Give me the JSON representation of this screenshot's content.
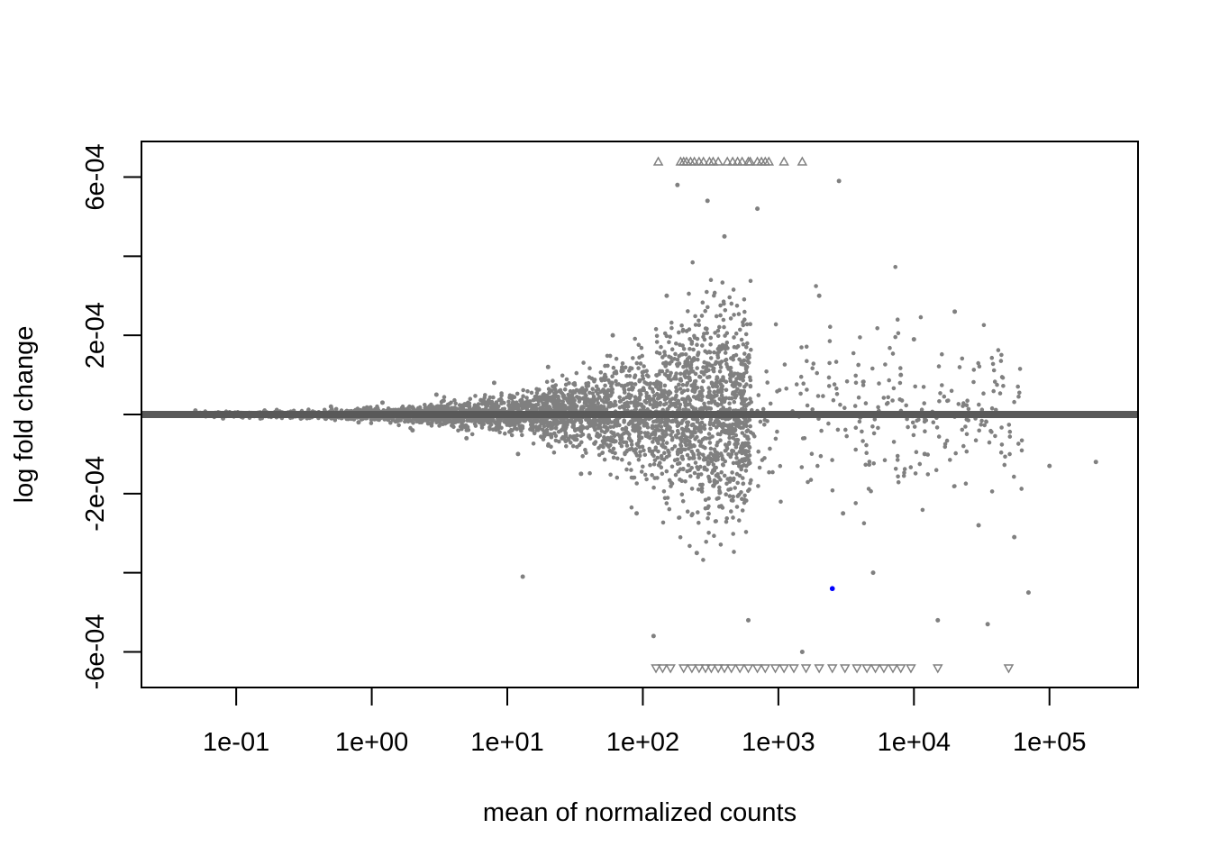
{
  "chart_data": {
    "type": "scatter",
    "title": "",
    "xlabel": "mean of normalized counts",
    "ylabel": "log fold change",
    "x_scale": "log10",
    "xlim": [
      0.02,
      450000
    ],
    "ylim": [
      -0.00069,
      0.00069
    ],
    "x_ticks": [
      0.1,
      1,
      10,
      100,
      1000,
      10000,
      100000
    ],
    "x_tick_labels": [
      "1e-01",
      "1e+00",
      "1e+01",
      "1e+02",
      "1e+03",
      "1e+04",
      "1e+05"
    ],
    "y_ticks": [
      -0.0006,
      -0.0004,
      -0.0002,
      0,
      0.0002,
      0.0004,
      0.0006
    ],
    "y_tick_labels": [
      "-6e-04",
      "",
      "-2e-04",
      "",
      "2e-04",
      "",
      "6e-04"
    ],
    "reference_line_y": 0,
    "grid": false,
    "legend": "none",
    "colors": {
      "points": "#808080",
      "reference_line": "#595959",
      "highlight": "#0000ff",
      "axis": "#000000"
    },
    "series": [
      {
        "marker": "circle",
        "description_values": "genes (sampled)",
        "points": [
          [
            0.03,
            0.0
          ],
          [
            0.05,
            1e-05
          ],
          [
            0.08,
            -1e-05
          ],
          [
            0.15,
            5e-06
          ],
          [
            0.3,
            -1e-05
          ],
          [
            0.5,
            2e-05
          ],
          [
            0.8,
            -2e-05
          ],
          [
            1.2,
            3e-05
          ],
          [
            2.0,
            -4e-05
          ],
          [
            3.0,
            5e-05
          ],
          [
            5.0,
            -6e-05
          ],
          [
            8.0,
            8e-05
          ],
          [
            12,
            -0.0001
          ],
          [
            20,
            0.00012
          ],
          [
            35,
            -0.00015
          ],
          [
            60,
            0.0002
          ],
          [
            90,
            -0.00025
          ],
          [
            150,
            0.0003
          ],
          [
            250,
            -0.00035
          ],
          [
            400,
            0.00045
          ],
          [
            13,
            -0.00041
          ],
          [
            2000,
            0.0003
          ],
          [
            2800,
            0.00059
          ],
          [
            3000,
            -0.00025
          ],
          [
            8000,
            0.0001
          ],
          [
            12000,
            -0.0001
          ],
          [
            20000,
            0.00026
          ],
          [
            15000,
            -0.00052
          ],
          [
            35000,
            -0.00053
          ],
          [
            70000,
            -0.00045
          ],
          [
            100000,
            -0.00013
          ],
          [
            220000,
            -0.00012
          ],
          [
            55000,
            -0.00031
          ],
          [
            30000,
            -0.00028
          ],
          [
            10000,
            0.00019
          ],
          [
            5000,
            -0.0004
          ],
          [
            1500,
            -0.0006
          ],
          [
            700,
            0.00052
          ],
          [
            180,
            0.00058
          ],
          [
            600,
            -0.00052
          ],
          [
            120,
            -0.00056
          ],
          [
            300,
            0.00054
          ]
        ]
      },
      {
        "marker": "triangle-up",
        "description_values": "values beyond upper limit",
        "x": [
          130,
          190,
          200,
          210,
          225,
          240,
          260,
          280,
          310,
          330,
          360,
          420,
          460,
          500,
          540,
          600,
          620,
          700,
          750,
          800,
          850,
          1100,
          1500
        ]
      },
      {
        "marker": "triangle-down",
        "description_values": "values beyond lower limit",
        "x": [
          125,
          140,
          160,
          200,
          230,
          260,
          290,
          320,
          360,
          400,
          450,
          520,
          600,
          700,
          800,
          950,
          1100,
          1300,
          1600,
          2000,
          2500,
          3100,
          3800,
          4500,
          5200,
          6000,
          7000,
          8000,
          9500,
          15000,
          50000
        ]
      }
    ],
    "highlight_point": {
      "x": 2500,
      "y": -0.00044
    }
  }
}
